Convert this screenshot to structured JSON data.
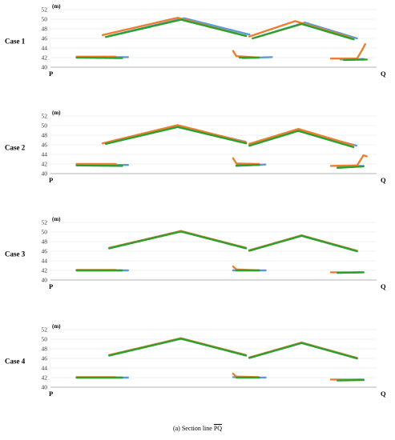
{
  "caption": {
    "prefix": "(a) Section line ",
    "line_name": "PQ"
  },
  "colors": {
    "series_1": "#5b9bd5",
    "series_2": "#ed7d31",
    "series_3": "#2ca02c"
  },
  "chart_data": [
    {
      "type": "scatter",
      "case": "Case 1",
      "ylabel": "(m)",
      "ylim": [
        40,
        52
      ],
      "yticks": [
        "40",
        "42",
        "44",
        "46",
        "48",
        "50",
        "52"
      ],
      "x_start_label": "P",
      "x_end_label": "Q",
      "grid": "horizontal",
      "series": [
        {
          "color": "#5b9bd5",
          "segments": [
            [
              [
                0.08,
                42.1
              ],
              [
                0.24,
                42.1
              ]
            ],
            [
              [
                0.18,
                46.5
              ],
              [
                0.41,
                50.2
              ],
              [
                0.61,
                46.8
              ]
            ],
            [
              [
                0.59,
                41.9
              ],
              [
                0.68,
                42.1
              ]
            ],
            [
              [
                0.63,
                46.2
              ],
              [
                0.78,
                49.3
              ],
              [
                0.94,
                46.0
              ]
            ],
            [
              [
                0.89,
                41.6
              ],
              [
                0.96,
                41.7
              ]
            ]
          ]
        },
        {
          "color": "#ed7d31",
          "segments": [
            [
              [
                0.08,
                42.2
              ],
              [
                0.2,
                42.2
              ]
            ],
            [
              [
                0.16,
                46.7
              ],
              [
                0.39,
                50.3
              ],
              [
                0.6,
                46.5
              ]
            ],
            [
              [
                0.56,
                43.4
              ],
              [
                0.57,
                42.3
              ],
              [
                0.64,
                42.0
              ]
            ],
            [
              [
                0.61,
                46.4
              ],
              [
                0.75,
                49.6
              ],
              [
                0.92,
                46.2
              ]
            ],
            [
              [
                0.86,
                41.8
              ],
              [
                0.94,
                41.8
              ],
              [
                0.955,
                43.5
              ],
              [
                0.965,
                44.8
              ]
            ]
          ]
        },
        {
          "color": "#2ca02c",
          "segments": [
            [
              [
                0.08,
                42.0
              ],
              [
                0.22,
                41.9
              ]
            ],
            [
              [
                0.17,
                46.3
              ],
              [
                0.4,
                49.9
              ],
              [
                0.6,
                46.5
              ]
            ],
            [
              [
                0.58,
                42.0
              ],
              [
                0.64,
                42.0
              ]
            ],
            [
              [
                0.62,
                46.0
              ],
              [
                0.77,
                49.0
              ],
              [
                0.93,
                45.8
              ]
            ],
            [
              [
                0.9,
                41.5
              ],
              [
                0.97,
                41.6
              ]
            ]
          ]
        }
      ]
    },
    {
      "type": "scatter",
      "case": "Case 2",
      "ylabel": "(m)",
      "ylim": [
        40,
        52
      ],
      "yticks": [
        "40",
        "42",
        "44",
        "46",
        "48",
        "50",
        "52"
      ],
      "x_start_label": "P",
      "x_end_label": "Q",
      "grid": "horizontal",
      "series": [
        {
          "color": "#5b9bd5",
          "segments": [
            [
              [
                0.08,
                41.8
              ],
              [
                0.24,
                41.8
              ]
            ],
            [
              [
                0.17,
                46.4
              ],
              [
                0.39,
                49.9
              ],
              [
                0.6,
                46.6
              ]
            ],
            [
              [
                0.57,
                41.6
              ],
              [
                0.66,
                41.9
              ]
            ],
            [
              [
                0.61,
                46.0
              ],
              [
                0.76,
                49.0
              ],
              [
                0.94,
                45.8
              ]
            ],
            [
              [
                0.88,
                41.5
              ],
              [
                0.96,
                41.6
              ]
            ]
          ]
        },
        {
          "color": "#ed7d31",
          "segments": [
            [
              [
                0.08,
                42.0
              ],
              [
                0.2,
                42.0
              ]
            ],
            [
              [
                0.16,
                46.3
              ],
              [
                0.39,
                50.1
              ],
              [
                0.6,
                46.5
              ]
            ],
            [
              [
                0.56,
                43.2
              ],
              [
                0.57,
                42.1
              ],
              [
                0.64,
                42.0
              ]
            ],
            [
              [
                0.61,
                46.2
              ],
              [
                0.76,
                49.3
              ],
              [
                0.93,
                45.9
              ]
            ],
            [
              [
                0.86,
                41.6
              ],
              [
                0.94,
                41.7
              ],
              [
                0.96,
                43.8
              ],
              [
                0.97,
                43.6
              ]
            ]
          ]
        },
        {
          "color": "#2ca02c",
          "segments": [
            [
              [
                0.08,
                41.7
              ],
              [
                0.22,
                41.6
              ]
            ],
            [
              [
                0.17,
                46.2
              ],
              [
                0.39,
                49.7
              ],
              [
                0.6,
                46.3
              ]
            ],
            [
              [
                0.57,
                41.7
              ],
              [
                0.64,
                41.8
              ]
            ],
            [
              [
                0.61,
                45.8
              ],
              [
                0.76,
                48.9
              ],
              [
                0.93,
                45.5
              ]
            ],
            [
              [
                0.88,
                41.2
              ],
              [
                0.96,
                41.5
              ]
            ]
          ]
        }
      ]
    },
    {
      "type": "scatter",
      "case": "Case 3",
      "ylabel": "(m)",
      "ylim": [
        40,
        52
      ],
      "yticks": [
        "40",
        "42",
        "44",
        "46",
        "48",
        "50",
        "52"
      ],
      "x_start_label": "P",
      "x_end_label": "Q",
      "grid": "horizontal",
      "series": [
        {
          "color": "#5b9bd5",
          "segments": [
            [
              [
                0.08,
                42.0
              ],
              [
                0.24,
                42.0
              ]
            ],
            [
              [
                0.18,
                46.6
              ],
              [
                0.4,
                50.2
              ],
              [
                0.6,
                46.6
              ]
            ],
            [
              [
                0.56,
                42.0
              ],
              [
                0.66,
                42.0
              ]
            ],
            [
              [
                0.61,
                46.1
              ],
              [
                0.77,
                49.3
              ],
              [
                0.94,
                46.0
              ]
            ],
            [
              [
                0.88,
                41.5
              ],
              [
                0.96,
                41.6
              ]
            ]
          ]
        },
        {
          "color": "#ed7d31",
          "segments": [
            [
              [
                0.08,
                42.1
              ],
              [
                0.2,
                42.1
              ]
            ],
            [
              [
                0.18,
                46.7
              ],
              [
                0.4,
                50.2
              ],
              [
                0.6,
                46.7
              ]
            ],
            [
              [
                0.56,
                42.8
              ],
              [
                0.57,
                42.2
              ],
              [
                0.64,
                42.0
              ]
            ],
            [
              [
                0.61,
                46.2
              ],
              [
                0.77,
                49.3
              ],
              [
                0.94,
                46.1
              ]
            ],
            [
              [
                0.86,
                41.6
              ],
              [
                0.95,
                41.6
              ]
            ]
          ]
        },
        {
          "color": "#2ca02c",
          "segments": [
            [
              [
                0.08,
                42.0
              ],
              [
                0.22,
                42.0
              ]
            ],
            [
              [
                0.18,
                46.6
              ],
              [
                0.4,
                50.1
              ],
              [
                0.6,
                46.6
              ]
            ],
            [
              [
                0.57,
                42.0
              ],
              [
                0.64,
                42.0
              ]
            ],
            [
              [
                0.61,
                46.1
              ],
              [
                0.77,
                49.2
              ],
              [
                0.94,
                46.0
              ]
            ],
            [
              [
                0.88,
                41.5
              ],
              [
                0.96,
                41.6
              ]
            ]
          ]
        }
      ]
    },
    {
      "type": "scatter",
      "case": "Case 4",
      "ylabel": "(m)",
      "ylim": [
        40,
        52
      ],
      "yticks": [
        "40",
        "42",
        "44",
        "46",
        "48",
        "50",
        "52"
      ],
      "x_start_label": "P",
      "x_end_label": "Q",
      "grid": "horizontal",
      "series": [
        {
          "color": "#5b9bd5",
          "segments": [
            [
              [
                0.08,
                42.0
              ],
              [
                0.24,
                42.0
              ]
            ],
            [
              [
                0.18,
                46.6
              ],
              [
                0.4,
                50.2
              ],
              [
                0.6,
                46.6
              ]
            ],
            [
              [
                0.56,
                42.1
              ],
              [
                0.66,
                42.0
              ]
            ],
            [
              [
                0.61,
                46.1
              ],
              [
                0.77,
                49.3
              ],
              [
                0.94,
                46.0
              ]
            ],
            [
              [
                0.88,
                41.5
              ],
              [
                0.96,
                41.6
              ]
            ]
          ]
        },
        {
          "color": "#ed7d31",
          "segments": [
            [
              [
                0.08,
                42.1
              ],
              [
                0.2,
                42.1
              ]
            ],
            [
              [
                0.18,
                46.7
              ],
              [
                0.4,
                50.2
              ],
              [
                0.6,
                46.7
              ]
            ],
            [
              [
                0.56,
                42.8
              ],
              [
                0.57,
                42.2
              ],
              [
                0.64,
                42.1
              ]
            ],
            [
              [
                0.61,
                46.2
              ],
              [
                0.77,
                49.3
              ],
              [
                0.94,
                46.1
              ]
            ],
            [
              [
                0.86,
                41.6
              ],
              [
                0.95,
                41.6
              ]
            ]
          ]
        },
        {
          "color": "#2ca02c",
          "segments": [
            [
              [
                0.08,
                42.0
              ],
              [
                0.22,
                42.0
              ]
            ],
            [
              [
                0.18,
                46.6
              ],
              [
                0.4,
                50.1
              ],
              [
                0.6,
                46.6
              ]
            ],
            [
              [
                0.57,
                42.0
              ],
              [
                0.64,
                42.0
              ]
            ],
            [
              [
                0.61,
                46.1
              ],
              [
                0.77,
                49.2
              ],
              [
                0.94,
                46.0
              ]
            ],
            [
              [
                0.88,
                41.4
              ],
              [
                0.96,
                41.5
              ]
            ]
          ]
        }
      ]
    }
  ]
}
